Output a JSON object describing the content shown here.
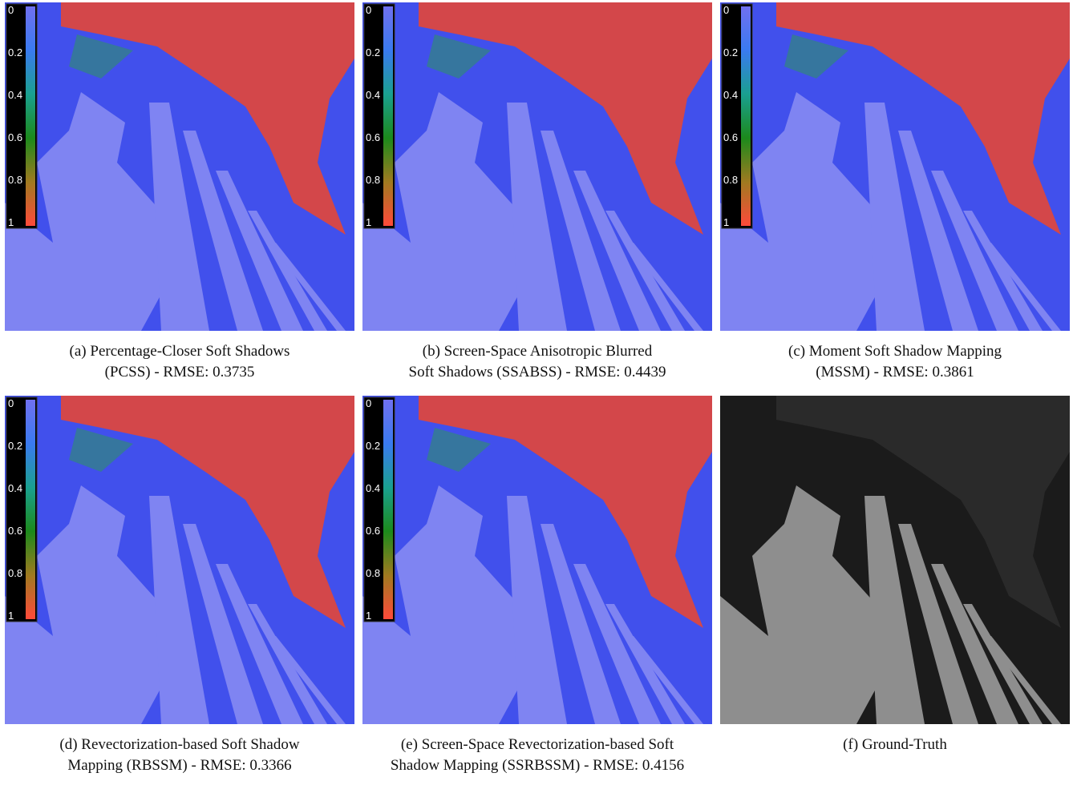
{
  "colorbar_ticks": [
    "0",
    "0.2",
    "0.4",
    "0.6",
    "0.8",
    "1"
  ],
  "panels": [
    {
      "caption_lines": [
        "(a) Percentage-Closer Soft Shadows",
        "(PCSS) - RMSE: 0.3735"
      ],
      "colorbar": true
    },
    {
      "caption_lines": [
        "(b) Screen-Space Anisotropic Blurred",
        "Soft Shadows (SSABSS) - RMSE: 0.4439"
      ],
      "colorbar": true
    },
    {
      "caption_lines": [
        "(c) Moment Soft Shadow Mapping",
        "(MSSM) - RMSE: 0.3861"
      ],
      "colorbar": true
    },
    {
      "caption_lines": [
        "(d) Revectorization-based Soft Shadow",
        "Mapping (RBSSM) - RMSE: 0.3366"
      ],
      "colorbar": true
    },
    {
      "caption_lines": [
        "(e) Screen-Space Revectorization-based Soft",
        "Shadow Mapping (SSRBSSM) - RMSE: 0.4156"
      ],
      "colorbar": true
    },
    {
      "caption_lines": [
        "(f) Ground-Truth"
      ],
      "colorbar": false
    }
  ]
}
